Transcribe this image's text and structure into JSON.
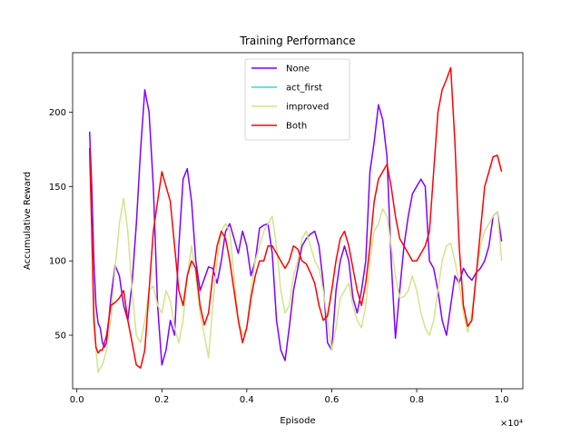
{
  "chart_data": {
    "type": "line",
    "title": "Training Performance",
    "xlabel": "Episode",
    "ylabel": "Accumulative Reward",
    "x_scale_label": "×10⁴",
    "xlim": [
      -0.01,
      1.05
    ],
    "ylim": [
      14,
      240
    ],
    "xticks": [
      0.0,
      0.2,
      0.4,
      0.6,
      0.8,
      1.0
    ],
    "xtick_labels": [
      "0.0",
      "0.2",
      "0.4",
      "0.6",
      "0.8",
      "1.0"
    ],
    "yticks": [
      50,
      100,
      150,
      200
    ],
    "ytick_labels": [
      "50",
      "100",
      "150",
      "200"
    ],
    "grid": false,
    "legend": {
      "position": "top-center"
    },
    "series": [
      {
        "name": "None",
        "color": "#8000ff",
        "x": [
          0.03,
          0.035,
          0.04,
          0.045,
          0.05,
          0.055,
          0.06,
          0.065,
          0.07,
          0.075,
          0.08,
          0.09,
          0.1,
          0.11,
          0.12,
          0.13,
          0.14,
          0.15,
          0.16,
          0.17,
          0.18,
          0.19,
          0.2,
          0.21,
          0.22,
          0.23,
          0.24,
          0.25,
          0.26,
          0.27,
          0.28,
          0.29,
          0.3,
          0.31,
          0.32,
          0.33,
          0.34,
          0.35,
          0.36,
          0.37,
          0.38,
          0.39,
          0.4,
          0.41,
          0.42,
          0.43,
          0.44,
          0.45,
          0.46,
          0.47,
          0.48,
          0.49,
          0.5,
          0.51,
          0.52,
          0.53,
          0.54,
          0.55,
          0.56,
          0.57,
          0.58,
          0.59,
          0.6,
          0.61,
          0.62,
          0.63,
          0.64,
          0.65,
          0.66,
          0.67,
          0.68,
          0.69,
          0.7,
          0.71,
          0.72,
          0.73,
          0.74,
          0.75,
          0.76,
          0.77,
          0.78,
          0.79,
          0.8,
          0.81,
          0.82,
          0.83,
          0.84,
          0.85,
          0.86,
          0.87,
          0.88,
          0.89,
          0.9,
          0.91,
          0.92,
          0.93,
          0.94,
          0.95,
          0.96,
          0.97,
          0.98,
          0.99,
          1.0
        ],
        "y": [
          187,
          150,
          100,
          70,
          58,
          55,
          45,
          42,
          45,
          60,
          75,
          97,
          90,
          70,
          60,
          85,
          125,
          175,
          215,
          200,
          150,
          70,
          30,
          40,
          60,
          50,
          110,
          155,
          162,
          140,
          100,
          80,
          88,
          96,
          95,
          85,
          100,
          120,
          125,
          115,
          105,
          120,
          110,
          90,
          100,
          122,
          124,
          125,
          105,
          60,
          40,
          33,
          55,
          80,
          95,
          110,
          115,
          118,
          120,
          110,
          85,
          45,
          40,
          80,
          100,
          110,
          100,
          75,
          65,
          80,
          100,
          160,
          180,
          205,
          195,
          170,
          100,
          48,
          80,
          110,
          130,
          145,
          150,
          155,
          150,
          100,
          95,
          80,
          60,
          50,
          70,
          90,
          85,
          95,
          90,
          87,
          92,
          95,
          100,
          110,
          130,
          133,
          113
        ]
      },
      {
        "name": "act_first",
        "color": "#2adddd",
        "x": [
          0.03,
          0.035,
          0.04,
          0.045,
          0.05,
          0.055,
          0.06,
          0.07,
          0.08,
          0.09,
          0.1,
          0.11,
          0.12,
          0.13,
          0.14,
          0.15,
          0.16,
          0.17,
          0.18,
          0.19,
          0.2,
          0.21,
          0.22,
          0.23,
          0.24,
          0.25,
          0.26,
          0.27,
          0.28,
          0.29,
          0.3,
          0.31,
          0.32,
          0.33,
          0.34,
          0.35,
          0.36,
          0.37,
          0.38,
          0.39,
          0.4,
          0.41,
          0.42,
          0.43,
          0.44,
          0.45,
          0.46,
          0.47,
          0.48,
          0.49,
          0.5,
          0.51,
          0.52,
          0.53,
          0.54,
          0.55,
          0.56,
          0.57,
          0.58,
          0.59,
          0.6,
          0.61,
          0.62,
          0.63,
          0.64,
          0.65,
          0.66,
          0.67,
          0.68,
          0.69,
          0.7,
          0.71,
          0.72,
          0.73,
          0.74,
          0.75,
          0.76,
          0.77,
          0.78,
          0.79,
          0.8,
          0.81,
          0.82,
          0.83,
          0.84,
          0.85,
          0.86,
          0.87,
          0.88,
          0.89,
          0.9,
          0.91,
          0.92,
          0.93,
          0.94,
          0.95,
          0.96,
          0.97,
          0.98,
          0.99,
          1.0
        ],
        "y": [
          170,
          120,
          70,
          40,
          25,
          28,
          30,
          40,
          60,
          95,
          125,
          142,
          120,
          80,
          50,
          45,
          60,
          80,
          83,
          70,
          65,
          80,
          73,
          55,
          45,
          60,
          90,
          110,
          90,
          65,
          50,
          35,
          70,
          100,
          120,
          125,
          120,
          90,
          60,
          50,
          55,
          80,
          100,
          110,
          120,
          125,
          130,
          110,
          80,
          65,
          70,
          90,
          100,
          115,
          120,
          110,
          100,
          95,
          80,
          60,
          40,
          55,
          75,
          80,
          85,
          70,
          60,
          55,
          70,
          100,
          120,
          125,
          135,
          130,
          110,
          90,
          75,
          76,
          80,
          90,
          80,
          65,
          55,
          50,
          60,
          80,
          100,
          110,
          112,
          100,
          85,
          65,
          52,
          65,
          90,
          110,
          120,
          125,
          130,
          133,
          100
        ],
        "shown_in_legend_only": true
      },
      {
        "name": "improved",
        "color": "#d4e38a",
        "x": [
          0.03,
          0.035,
          0.04,
          0.045,
          0.05,
          0.055,
          0.06,
          0.07,
          0.08,
          0.09,
          0.1,
          0.11,
          0.12,
          0.13,
          0.14,
          0.15,
          0.16,
          0.17,
          0.18,
          0.19,
          0.2,
          0.21,
          0.22,
          0.23,
          0.24,
          0.25,
          0.26,
          0.27,
          0.28,
          0.29,
          0.3,
          0.31,
          0.32,
          0.33,
          0.34,
          0.35,
          0.36,
          0.37,
          0.38,
          0.39,
          0.4,
          0.41,
          0.42,
          0.43,
          0.44,
          0.45,
          0.46,
          0.47,
          0.48,
          0.49,
          0.5,
          0.51,
          0.52,
          0.53,
          0.54,
          0.55,
          0.56,
          0.57,
          0.58,
          0.59,
          0.6,
          0.61,
          0.62,
          0.63,
          0.64,
          0.65,
          0.66,
          0.67,
          0.68,
          0.69,
          0.7,
          0.71,
          0.72,
          0.73,
          0.74,
          0.75,
          0.76,
          0.77,
          0.78,
          0.79,
          0.8,
          0.81,
          0.82,
          0.83,
          0.84,
          0.85,
          0.86,
          0.87,
          0.88,
          0.89,
          0.9,
          0.91,
          0.92,
          0.93,
          0.94,
          0.95,
          0.96,
          0.97,
          0.98,
          0.99,
          1.0
        ],
        "y": [
          170,
          120,
          70,
          40,
          25,
          28,
          30,
          40,
          60,
          95,
          125,
          142,
          120,
          80,
          50,
          45,
          60,
          80,
          83,
          70,
          65,
          80,
          73,
          55,
          45,
          60,
          90,
          110,
          90,
          65,
          50,
          35,
          70,
          100,
          120,
          125,
          120,
          90,
          60,
          50,
          55,
          80,
          100,
          110,
          120,
          125,
          130,
          110,
          80,
          65,
          70,
          90,
          100,
          115,
          120,
          110,
          100,
          95,
          80,
          60,
          40,
          55,
          75,
          80,
          85,
          70,
          60,
          55,
          70,
          100,
          120,
          125,
          135,
          130,
          110,
          90,
          75,
          76,
          80,
          90,
          80,
          65,
          55,
          50,
          60,
          80,
          100,
          110,
          112,
          100,
          85,
          65,
          52,
          65,
          90,
          110,
          120,
          125,
          130,
          133,
          100
        ]
      },
      {
        "name": "Both",
        "color": "#ff0000",
        "x": [
          0.03,
          0.035,
          0.04,
          0.045,
          0.05,
          0.055,
          0.06,
          0.07,
          0.08,
          0.09,
          0.1,
          0.11,
          0.12,
          0.13,
          0.14,
          0.15,
          0.16,
          0.17,
          0.18,
          0.19,
          0.2,
          0.21,
          0.22,
          0.23,
          0.24,
          0.25,
          0.26,
          0.27,
          0.28,
          0.29,
          0.3,
          0.31,
          0.32,
          0.33,
          0.34,
          0.35,
          0.36,
          0.37,
          0.38,
          0.39,
          0.4,
          0.41,
          0.42,
          0.43,
          0.44,
          0.45,
          0.46,
          0.47,
          0.48,
          0.49,
          0.5,
          0.51,
          0.52,
          0.53,
          0.54,
          0.55,
          0.56,
          0.57,
          0.58,
          0.59,
          0.6,
          0.61,
          0.62,
          0.63,
          0.64,
          0.65,
          0.66,
          0.67,
          0.68,
          0.69,
          0.7,
          0.71,
          0.72,
          0.73,
          0.74,
          0.75,
          0.76,
          0.77,
          0.78,
          0.79,
          0.8,
          0.81,
          0.82,
          0.83,
          0.84,
          0.85,
          0.86,
          0.87,
          0.88,
          0.89,
          0.9,
          0.91,
          0.92,
          0.93,
          0.94,
          0.95,
          0.96,
          0.97,
          0.98,
          0.99,
          1.0
        ],
        "y": [
          176,
          120,
          60,
          42,
          38,
          40,
          40,
          50,
          70,
          72,
          75,
          80,
          60,
          45,
          30,
          28,
          40,
          80,
          120,
          140,
          160,
          150,
          140,
          110,
          80,
          70,
          90,
          100,
          95,
          70,
          57,
          65,
          90,
          110,
          120,
          115,
          100,
          80,
          60,
          45,
          55,
          75,
          90,
          100,
          100,
          110,
          110,
          105,
          100,
          95,
          100,
          110,
          108,
          100,
          98,
          92,
          85,
          70,
          60,
          63,
          80,
          100,
          115,
          120,
          110,
          95,
          80,
          70,
          85,
          110,
          140,
          155,
          160,
          165,
          150,
          130,
          115,
          110,
          105,
          100,
          100,
          105,
          110,
          120,
          160,
          200,
          215,
          222,
          230,
          180,
          110,
          70,
          56,
          60,
          90,
          120,
          150,
          160,
          170,
          171,
          160
        ]
      }
    ]
  }
}
